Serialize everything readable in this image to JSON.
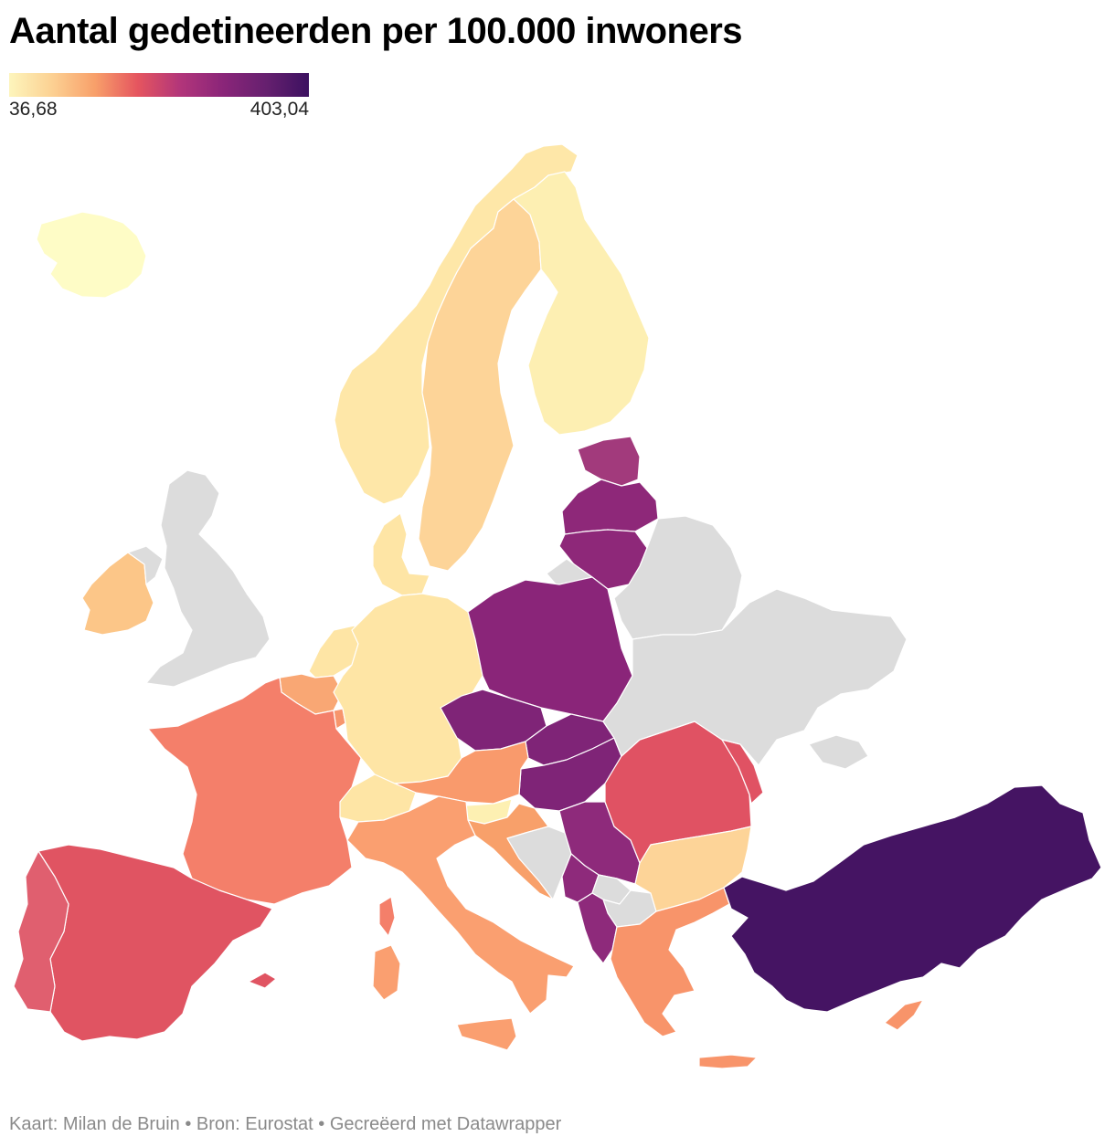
{
  "title": "Aantal gedetineerden per 100.000 inwoners",
  "legend": {
    "min_label": "36,68",
    "max_label": "403,04",
    "min_value": 36.68,
    "max_value": 403.04,
    "gradient": [
      "#fdf5bc",
      "#fcd193",
      "#f8a06a",
      "#e5555f",
      "#b2357a",
      "#8a2579",
      "#66206f",
      "#3c1160"
    ],
    "no_data_color": "#dcdcdc"
  },
  "footer": "Kaart: Milan de Bruin • Bron: Eurostat • Gecreëerd met Datawrapper",
  "regions": [
    {
      "name": "iceland",
      "color": "#fefcc6"
    },
    {
      "name": "norway",
      "color": "#fee7a8"
    },
    {
      "name": "sweden",
      "color": "#fdd498"
    },
    {
      "name": "finland",
      "color": "#fdefb2"
    },
    {
      "name": "estonia",
      "color": "#a23a7c"
    },
    {
      "name": "latvia",
      "color": "#8e2879"
    },
    {
      "name": "lithuania",
      "color": "#8e2879"
    },
    {
      "name": "denmark",
      "color": "#fee5a5"
    },
    {
      "name": "ireland",
      "color": "#fcc688"
    },
    {
      "name": "united-kingdom",
      "color": "#dcdcdc"
    },
    {
      "name": "northern-ireland",
      "color": "#dcdcdc"
    },
    {
      "name": "netherlands",
      "color": "#fee5a5"
    },
    {
      "name": "belgium",
      "color": "#f9a774"
    },
    {
      "name": "luxembourg",
      "color": "#f7956c"
    },
    {
      "name": "germany",
      "color": "#fee5a5"
    },
    {
      "name": "poland",
      "color": "#8a2579"
    },
    {
      "name": "czechia",
      "color": "#7f2477"
    },
    {
      "name": "slovakia",
      "color": "#7f2477"
    },
    {
      "name": "hungary",
      "color": "#7f2477"
    },
    {
      "name": "austria",
      "color": "#f99a6c"
    },
    {
      "name": "switzerland",
      "color": "#fee5a5"
    },
    {
      "name": "slovenia",
      "color": "#fdf0b2"
    },
    {
      "name": "croatia",
      "color": "#f8a06a"
    },
    {
      "name": "bosnia",
      "color": "#dcdcdc"
    },
    {
      "name": "serbia",
      "color": "#8e2a7b"
    },
    {
      "name": "montenegro",
      "color": "#8e2a7b"
    },
    {
      "name": "kosovo",
      "color": "#dcdcdc"
    },
    {
      "name": "north-macedonia",
      "color": "#dcdcdc"
    },
    {
      "name": "albania",
      "color": "#8e2a7b"
    },
    {
      "name": "romania",
      "color": "#e05263"
    },
    {
      "name": "moldova",
      "color": "#e05263"
    },
    {
      "name": "bulgaria",
      "color": "#fdd498"
    },
    {
      "name": "greece",
      "color": "#f8946a"
    },
    {
      "name": "cyprus",
      "color": "#f8946a"
    },
    {
      "name": "turkey",
      "color": "#451463"
    },
    {
      "name": "france",
      "color": "#f47f6a"
    },
    {
      "name": "corsica",
      "color": "#f47f6a"
    },
    {
      "name": "spain",
      "color": "#e05462"
    },
    {
      "name": "balearic-islands",
      "color": "#e05462"
    },
    {
      "name": "portugal",
      "color": "#e05f6f"
    },
    {
      "name": "italy",
      "color": "#fa9f70"
    },
    {
      "name": "sardinia",
      "color": "#fa9f70"
    },
    {
      "name": "sicily",
      "color": "#fa9f70"
    },
    {
      "name": "malta",
      "color": "#fa9f70"
    },
    {
      "name": "belarus",
      "color": "#dcdcdc"
    },
    {
      "name": "ukraine",
      "color": "#dcdcdc"
    },
    {
      "name": "crimea",
      "color": "#dcdcdc"
    },
    {
      "name": "russia-kaliningrad",
      "color": "#dcdcdc"
    }
  ]
}
